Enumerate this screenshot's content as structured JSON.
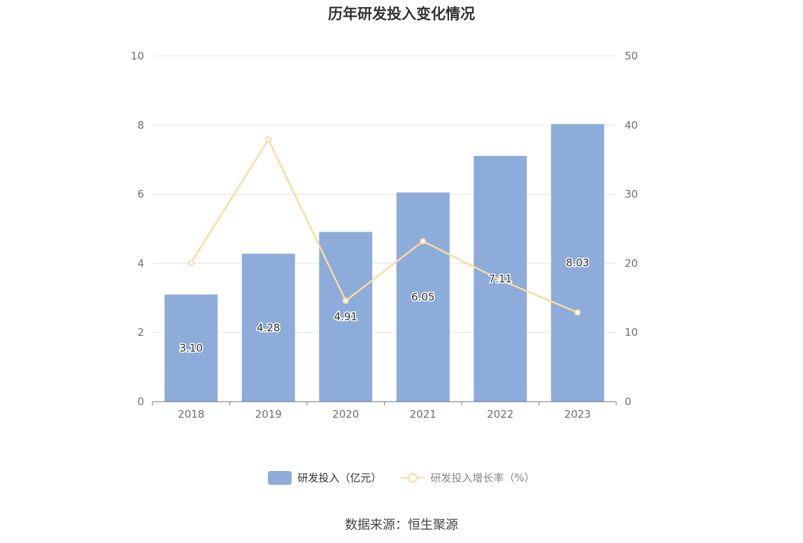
{
  "chart_data": {
    "type": "bar",
    "title": "历年研发投入变化情况",
    "categories": [
      "2018",
      "2019",
      "2020",
      "2021",
      "2022",
      "2023"
    ],
    "series": [
      {
        "name": "研发投入（亿元）",
        "type": "bar",
        "axis": "left",
        "values": [
          3.1,
          4.28,
          4.91,
          6.05,
          7.11,
          8.03
        ],
        "labels": [
          "3.10",
          "4.28",
          "4.91",
          "6.05",
          "7.11",
          "8.03"
        ],
        "color": "#8eacda"
      },
      {
        "name": "研发投入增长率（%）",
        "type": "line",
        "axis": "right",
        "values": [
          20.1,
          37.9,
          14.6,
          23.2,
          17.6,
          12.9
        ],
        "color": "#fbdca0"
      }
    ],
    "y_left": {
      "min": 0,
      "max": 10,
      "ticks": [
        "0",
        "2",
        "4",
        "6",
        "8",
        "10"
      ]
    },
    "y_right": {
      "min": 0,
      "max": 50,
      "ticks": [
        "0",
        "10",
        "20",
        "30",
        "40",
        "50"
      ]
    },
    "grid": true,
    "legend_position": "bottom"
  },
  "legend": {
    "bar_label": "研发投入（亿元）",
    "line_label": "研发投入增长率（%）"
  },
  "source": "数据来源：恒生聚源"
}
